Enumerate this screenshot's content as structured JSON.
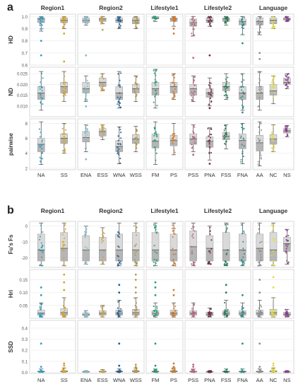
{
  "colors": {
    "NA": "#2a9fc0",
    "SS": "#d6a21e",
    "ENA": "#86b9c6",
    "ESS": "#c9a34b",
    "WNA": "#1f5e8f",
    "WSS": "#b89a4a",
    "FM": "#1f9e78",
    "PS": "#d27a2c",
    "PSS": "#b8667a",
    "PNA": "#6b2c3f",
    "FSS": "#1e7a53",
    "FNA": "#2c8f86",
    "AA": "#8f8f8f",
    "NC": "#e3dc43",
    "NS": "#8a3c8c"
  },
  "chart_data": [
    {
      "panel": "a",
      "type": "box",
      "groups": [
        {
          "name": "Region1",
          "categories": [
            "NA",
            "SS"
          ]
        },
        {
          "name": "Region2",
          "categories": [
            "ENA",
            "ESS",
            "WNA",
            "WSS"
          ]
        },
        {
          "name": "Lifestyle1",
          "categories": [
            "FM",
            "PS"
          ]
        },
        {
          "name": "Lifestyle2",
          "categories": [
            "PSS",
            "PNA",
            "FSS",
            "FNA"
          ]
        },
        {
          "name": "Language",
          "categories": [
            "AA",
            "NC",
            "NS"
          ]
        }
      ],
      "rows": [
        {
          "label": "HD",
          "ylim": [
            0.6,
            1.02
          ],
          "ticks": [
            "1.0",
            "0.9",
            "0.8",
            "0.7",
            "0.6"
          ],
          "tick_values": [
            1.0,
            0.9,
            0.8,
            0.7,
            0.6
          ],
          "boxes": {
            "NA": [
              0.88,
              0.95,
              0.98,
              0.99,
              1.0
            ],
            "SS": [
              0.9,
              0.95,
              0.97,
              0.99,
              1.0
            ],
            "ENA": [
              0.93,
              0.95,
              0.97,
              0.99,
              1.0
            ],
            "ESS": [
              0.94,
              0.96,
              0.98,
              0.99,
              1.0
            ],
            "WNA": [
              0.9,
              0.95,
              0.97,
              0.99,
              1.0
            ],
            "WSS": [
              0.9,
              0.94,
              0.97,
              0.99,
              1.0
            ],
            "FM": [
              0.96,
              0.98,
              0.99,
              1.0,
              1.0
            ],
            "PS": [
              0.92,
              0.96,
              0.98,
              0.99,
              1.0
            ],
            "PSS": [
              0.84,
              0.92,
              0.95,
              0.98,
              1.0
            ],
            "PNA": [
              0.92,
              0.95,
              0.97,
              0.99,
              1.0
            ],
            "FSS": [
              0.93,
              0.96,
              0.98,
              0.99,
              1.0
            ],
            "FNA": [
              0.85,
              0.93,
              0.96,
              0.98,
              1.0
            ],
            "AA": [
              0.85,
              0.93,
              0.96,
              0.99,
              1.0
            ],
            "NC": [
              0.9,
              0.94,
              0.97,
              0.99,
              1.0
            ],
            "NS": [
              0.96,
              0.97,
              0.98,
              0.99,
              1.0
            ]
          },
          "outliers": {
            "NA": [
              0.68,
              0.8
            ],
            "SS": [
              0.63,
              0.86
            ],
            "ENA": [
              0.68
            ],
            "ESS": [
              0.89
            ],
            "PS": [
              0.86,
              0.9
            ],
            "PSS": [
              0.66
            ],
            "PNA": [
              0.68
            ],
            "FNA": [
              0.78
            ],
            "AA": [
              0.65,
              0.7
            ]
          }
        },
        {
          "label": "ND",
          "ylim": [
            0.005,
            0.028
          ],
          "ticks": [
            "0.025",
            "0.020",
            "0.015",
            "0.010"
          ],
          "tick_values": [
            0.025,
            0.02,
            0.015,
            0.01
          ],
          "boxes": {
            "NA": [
              0.008,
              0.013,
              0.016,
              0.019,
              0.026
            ],
            "SS": [
              0.012,
              0.016,
              0.019,
              0.021,
              0.026
            ],
            "ENA": [
              0.012,
              0.016,
              0.018,
              0.021,
              0.024
            ],
            "ESS": [
              0.017,
              0.019,
              0.021,
              0.023,
              0.025
            ],
            "WNA": [
              0.009,
              0.013,
              0.016,
              0.019,
              0.026
            ],
            "WSS": [
              0.012,
              0.016,
              0.018,
              0.02,
              0.024
            ],
            "FM": [
              0.009,
              0.015,
              0.018,
              0.021,
              0.027
            ],
            "PS": [
              0.013,
              0.016,
              0.019,
              0.021,
              0.025
            ],
            "PSS": [
              0.012,
              0.015,
              0.018,
              0.02,
              0.024
            ],
            "PNA": [
              0.01,
              0.014,
              0.016,
              0.018,
              0.023
            ],
            "FSS": [
              0.013,
              0.017,
              0.019,
              0.021,
              0.025
            ],
            "FNA": [
              0.008,
              0.013,
              0.016,
              0.019,
              0.025
            ],
            "AA": [
              0.008,
              0.013,
              0.016,
              0.019,
              0.026
            ],
            "NC": [
              0.011,
              0.015,
              0.017,
              0.02,
              0.024
            ],
            "NS": [
              0.018,
              0.02,
              0.021,
              0.023,
              0.025
            ]
          },
          "outliers": {
            "ENA": [
              0.0098
            ],
            "PNA": [
              0.009
            ],
            "FNA": [
              0.007
            ]
          }
        },
        {
          "label": "pairwise",
          "ylim": [
            1.8,
            8.6
          ],
          "ticks": [
            "8",
            "6",
            "4",
            "2"
          ],
          "tick_values": [
            8,
            6,
            4,
            2
          ],
          "boxes": {
            "NA": [
              2.5,
              4.2,
              5.2,
              6.0,
              8.2
            ],
            "SS": [
              4.0,
              5.3,
              6.0,
              6.6,
              8.0
            ],
            "ENA": [
              4.2,
              5.5,
              6.1,
              6.9,
              7.8
            ],
            "ESS": [
              5.8,
              6.3,
              6.9,
              7.3,
              7.8
            ],
            "WNA": [
              2.6,
              4.2,
              4.9,
              5.7,
              7.5
            ],
            "WSS": [
              4.2,
              5.3,
              5.9,
              6.5,
              7.6
            ],
            "FM": [
              2.5,
              4.7,
              5.6,
              6.6,
              8.2
            ],
            "PS": [
              3.8,
              5.0,
              5.7,
              6.4,
              8.0
            ],
            "PSS": [
              4.2,
              5.2,
              5.9,
              6.6,
              7.8
            ],
            "PNA": [
              3.1,
              4.8,
              5.6,
              6.2,
              7.4
            ],
            "FSS": [
              4.6,
              5.8,
              6.3,
              6.8,
              7.8
            ],
            "FNA": [
              2.6,
              4.6,
              5.7,
              6.6,
              8.0
            ],
            "AA": [
              2.3,
              4.3,
              5.4,
              6.4,
              8.2
            ],
            "NC": [
              4.2,
              5.2,
              5.9,
              6.5,
              7.8
            ],
            "NS": [
              6.2,
              6.7,
              7.0,
              7.3,
              7.7
            ]
          },
          "outliers": {
            "ENA": [
              3.2
            ],
            "PSS": [
              3.8
            ],
            "PNA": [
              2.6
            ]
          }
        }
      ],
      "xlabels": [
        "NA",
        "SS",
        "ENA",
        "ESS",
        "WNA",
        "WSS",
        "FM",
        "PS",
        "PSS",
        "PNA",
        "FSS",
        "FNA",
        "AA",
        "NC",
        "NS"
      ]
    },
    {
      "panel": "b",
      "type": "box",
      "groups": [
        {
          "name": "Region1",
          "categories": [
            "NA",
            "SS"
          ]
        },
        {
          "name": "Region2",
          "categories": [
            "ENA",
            "ESS",
            "WNA",
            "WSS"
          ]
        },
        {
          "name": "Lifestyle1",
          "categories": [
            "FM",
            "PS"
          ]
        },
        {
          "name": "Lifestyle2",
          "categories": [
            "PSS",
            "PNA",
            "FSS",
            "FNA"
          ]
        },
        {
          "name": "Language",
          "categories": [
            "AA",
            "NC",
            "NS"
          ]
        }
      ],
      "rows": [
        {
          "label": "Fu's Fs",
          "ylim": [
            -26,
            3
          ],
          "ticks": [
            "0",
            "-10",
            "-20"
          ],
          "tick_values": [
            0,
            -10,
            -20
          ],
          "boxes": {
            "NA": [
              -25,
              -22,
              -15,
              -5,
              2
            ],
            "SS": [
              -25,
              -22,
              -14,
              -4,
              2
            ],
            "ENA": [
              -24,
              -22,
              -15,
              -6,
              0
            ],
            "ESS": [
              -24,
              -22,
              -15,
              -7,
              -1
            ],
            "WNA": [
              -25,
              -22,
              -15,
              -5,
              2
            ],
            "WSS": [
              -25,
              -22,
              -15,
              -4,
              2
            ],
            "FM": [
              -25,
              -22,
              -15,
              -4,
              2
            ],
            "PS": [
              -25,
              -22,
              -15,
              -5,
              2
            ],
            "PSS": [
              -25,
              -22,
              -13,
              -3,
              2
            ],
            "PNA": [
              -24,
              -22,
              -14,
              -6,
              0
            ],
            "FSS": [
              -25,
              -22,
              -15,
              -4,
              2
            ],
            "FNA": [
              -25,
              -22,
              -15,
              -5,
              2
            ],
            "AA": [
              -25,
              -22,
              -14,
              -5,
              2
            ],
            "NC": [
              -25,
              -22,
              -15,
              -4,
              2
            ],
            "NS": [
              -24,
              -16,
              -11,
              -7,
              -2
            ]
          },
          "outliers": {}
        },
        {
          "label": "Hri",
          "ylim": [
            0,
            0.19
          ],
          "ticks": [
            "0.15",
            "0.10",
            "0.05"
          ],
          "tick_values": [
            0.15,
            0.1,
            0.05
          ],
          "boxes": {
            "NA": [
              0.005,
              0.012,
              0.02,
              0.032,
              0.06
            ],
            "SS": [
              0.005,
              0.012,
              0.022,
              0.038,
              0.08
            ],
            "ENA": [
              0.005,
              0.01,
              0.015,
              0.02,
              0.03
            ],
            "ESS": [
              0.005,
              0.012,
              0.02,
              0.03,
              0.05
            ],
            "WNA": [
              0.005,
              0.012,
              0.02,
              0.032,
              0.07
            ],
            "WSS": [
              0.005,
              0.012,
              0.022,
              0.035,
              0.08
            ],
            "FM": [
              0.005,
              0.012,
              0.02,
              0.03,
              0.06
            ],
            "PS": [
              0.005,
              0.012,
              0.02,
              0.032,
              0.06
            ],
            "PSS": [
              0.005,
              0.012,
              0.02,
              0.03,
              0.06
            ],
            "PNA": [
              0.005,
              0.01,
              0.016,
              0.024,
              0.04
            ],
            "FSS": [
              0.005,
              0.012,
              0.02,
              0.03,
              0.07
            ],
            "FNA": [
              0.005,
              0.012,
              0.02,
              0.03,
              0.06
            ],
            "AA": [
              0.005,
              0.012,
              0.02,
              0.032,
              0.07
            ],
            "NC": [
              0.005,
              0.012,
              0.022,
              0.035,
              0.08
            ],
            "NS": [
              0.005,
              0.01,
              0.016,
              0.024,
              0.035
            ]
          },
          "outliers": {
            "NA": [
              0.09,
              0.12
            ],
            "SS": [
              0.11,
              0.14,
              0.17
            ],
            "WNA": [
              0.1,
              0.13
            ],
            "WSS": [
              0.1,
              0.12,
              0.15,
              0.17
            ],
            "FM": [
              0.09,
              0.12,
              0.14
            ],
            "PS": [
              0.09,
              0.11
            ],
            "FSS": [
              0.1,
              0.13
            ],
            "FNA": [
              0.09
            ],
            "AA": [
              0.1,
              0.15
            ],
            "NC": [
              0.12,
              0.16
            ]
          }
        },
        {
          "label": "SSD",
          "ylim": [
            -0.01,
            0.47
          ],
          "ticks": [
            "0.4",
            "0.3",
            "0.2",
            "0.1",
            "0.0"
          ],
          "tick_values": [
            0.4,
            0.3,
            0.2,
            0.1,
            0.0
          ],
          "boxes": {
            "NA": [
              0.0,
              0.003,
              0.006,
              0.012,
              0.03
            ],
            "SS": [
              0.0,
              0.004,
              0.008,
              0.016,
              0.04
            ],
            "ENA": [
              0.0,
              0.002,
              0.004,
              0.008,
              0.015
            ],
            "ESS": [
              0.0,
              0.003,
              0.006,
              0.012,
              0.025
            ],
            "WNA": [
              0.0,
              0.003,
              0.006,
              0.012,
              0.03
            ],
            "WSS": [
              0.0,
              0.004,
              0.008,
              0.016,
              0.04
            ],
            "FM": [
              0.0,
              0.003,
              0.006,
              0.012,
              0.03
            ],
            "PS": [
              0.0,
              0.004,
              0.008,
              0.016,
              0.04
            ],
            "PSS": [
              0.0,
              0.003,
              0.006,
              0.012,
              0.03
            ],
            "PNA": [
              0.0,
              0.002,
              0.004,
              0.008,
              0.015
            ],
            "FSS": [
              0.0,
              0.003,
              0.006,
              0.012,
              0.03
            ],
            "FNA": [
              0.0,
              0.003,
              0.006,
              0.012,
              0.03
            ],
            "AA": [
              0.0,
              0.003,
              0.006,
              0.012,
              0.03
            ],
            "NC": [
              0.0,
              0.004,
              0.008,
              0.016,
              0.04
            ],
            "NS": [
              0.0,
              0.002,
              0.004,
              0.008,
              0.015
            ]
          },
          "outliers": {
            "NA": [
              0.26,
              0.05
            ],
            "SS": [
              0.06,
              0.08
            ],
            "WNA": [
              0.26,
              0.06
            ],
            "WSS": [
              0.05,
              0.07
            ],
            "FM": [
              0.26,
              0.06
            ],
            "PS": [
              0.05,
              0.08
            ],
            "PSS": [
              0.05,
              0.07
            ],
            "FNA": [
              0.26
            ],
            "AA": [
              0.26,
              0.05
            ],
            "NC": [
              0.06,
              0.08
            ]
          }
        }
      ],
      "xlabels": [
        "NA",
        "SS",
        "ENA",
        "ESS",
        "WNA",
        "WSS",
        "FM",
        "PS",
        "PSS",
        "PNA",
        "FSS",
        "FNA",
        "AA",
        "NC",
        "NS"
      ]
    }
  ]
}
